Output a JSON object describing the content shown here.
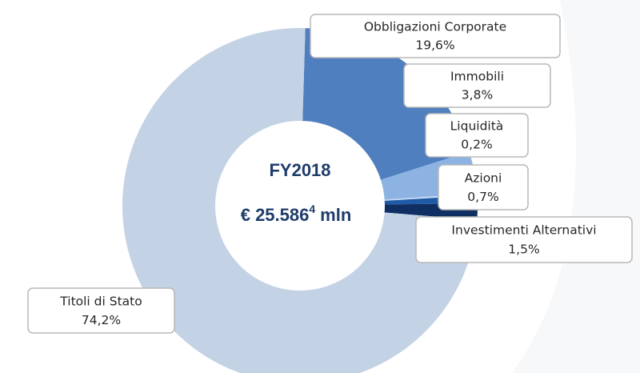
{
  "chart_data": {
    "type": "donut",
    "center_title": "FY2018",
    "center_value": "€ 25.586",
    "center_note": "4",
    "center_unit": "mln",
    "categories": [
      "Obbligazioni Corporate",
      "Immobili",
      "Liquidità",
      "Azioni",
      "Investimenti Alternativi",
      "Titoli di Stato"
    ],
    "values": [
      19.6,
      3.8,
      0.2,
      0.7,
      1.5,
      74.2
    ],
    "value_labels": [
      "19,6%",
      "3,8%",
      "0,2%",
      "0,7%",
      "1,5%",
      "74,2%"
    ],
    "colors": [
      "#4f7fbf",
      "#8db3e2",
      "#c6d9f1",
      "#1f5aa6",
      "#0f2f63",
      "#c3d2e4"
    ]
  }
}
